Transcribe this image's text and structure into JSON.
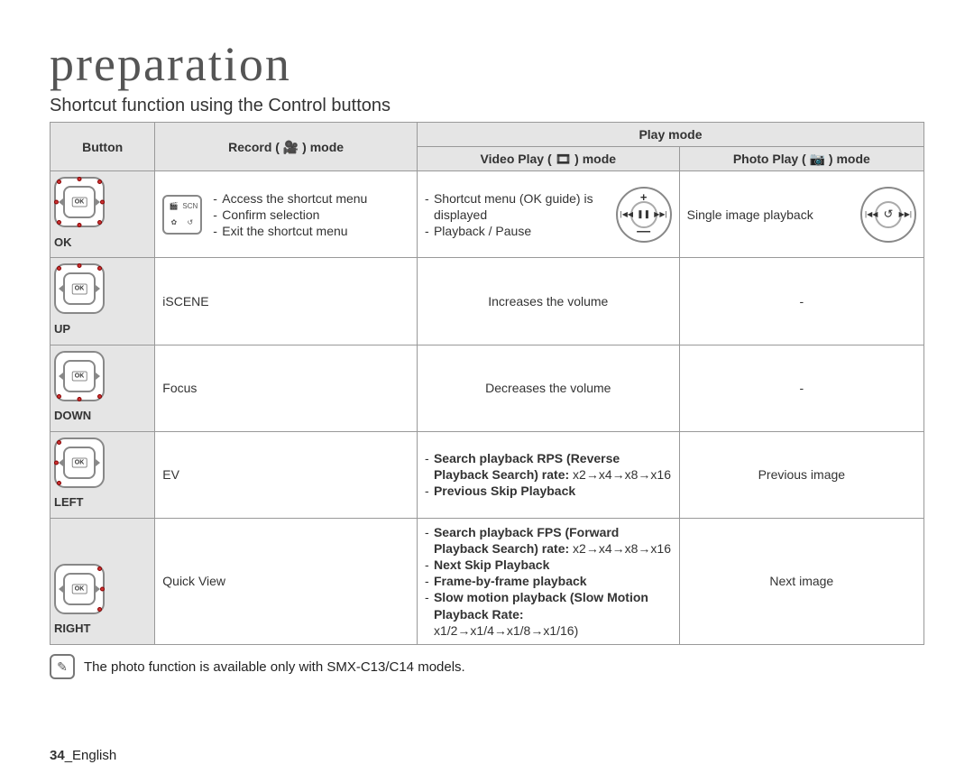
{
  "title": "preparation",
  "subtitle": "Shortcut function using the Control buttons",
  "headers": {
    "button": "Button",
    "record": "Record ( 🎥 ) mode",
    "play": "Play mode",
    "video": "Video Play ( 🎞 ) mode",
    "photo": "Photo Play ( 📷 ) mode"
  },
  "rows": {
    "ok": {
      "label": "OK",
      "rec1": "Access the shortcut menu",
      "rec2": "Confirm selection",
      "rec3": "Exit the shortcut menu",
      "vid1": "Shortcut menu (OK guide) is displayed",
      "vid2": "Playback / Pause",
      "pho": "Single image playback"
    },
    "up": {
      "label": "UP",
      "rec": "iSCENE",
      "vid": "Increases the volume",
      "pho": "-"
    },
    "down": {
      "label": "DOWN",
      "rec": "Focus",
      "vid": "Decreases the volume",
      "pho": "-"
    },
    "left": {
      "label": "LEFT",
      "rec": "EV",
      "vid1": "Search playback RPS (Reverse Playback Search) rate:",
      "vid1r": " x2→x4→x8→x16",
      "vid2": "Previous Skip Playback",
      "pho": "Previous image"
    },
    "right": {
      "label": "RIGHT",
      "rec": "Quick View",
      "vid1": "Search playback FPS (Forward Playback Search) rate:",
      "vid1r": " x2→x4→x8→x16",
      "vid2": "Next Skip Playback",
      "vid3": "Frame-by-frame playback",
      "vid4": "Slow motion playback (Slow Motion Playback Rate:",
      "vid4r": " x1/2→x1/4→x1/8→x1/16)",
      "pho": "Next image"
    }
  },
  "footnote": "The photo function is available only with SMX-C13/C14 models.",
  "page": {
    "num": "34",
    "lang": "_English"
  }
}
